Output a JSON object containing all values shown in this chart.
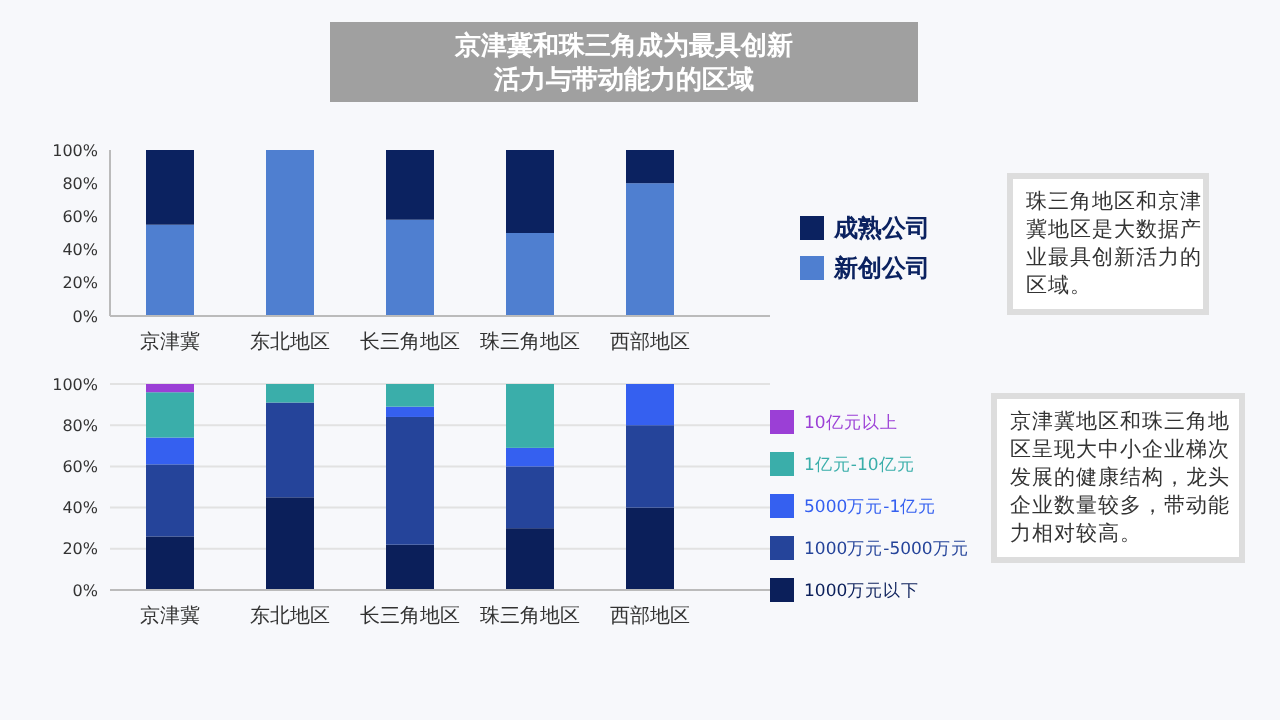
{
  "chart_data": [
    {
      "type": "bar",
      "title": "京津冀和珠三角成为最具创新活力与带动能力的区域",
      "stacked": true,
      "legend": "right",
      "grid": false,
      "categories": [
        "京津冀",
        "东北地区",
        "长三角地区",
        "珠三角地区",
        "西部地区"
      ],
      "ylim": [
        0,
        100
      ],
      "yticks": [
        {
          "value": 0,
          "label": "0%"
        },
        {
          "value": 20,
          "label": "20%"
        },
        {
          "value": 40,
          "label": "40%"
        },
        {
          "value": 60,
          "label": "60%"
        },
        {
          "value": 80,
          "label": "80%"
        },
        {
          "value": 100,
          "label": "100%"
        }
      ],
      "series": [
        {
          "name": "新创公司",
          "color": "#4f7fd0",
          "values": [
            55,
            100,
            58,
            50,
            80
          ]
        },
        {
          "name": "成熟公司",
          "color": "#0b2260",
          "values": [
            45,
            0,
            42,
            50,
            20
          ]
        }
      ],
      "annotations": [
        "珠三角地区和京津冀地区是大数据产业最具创新活力的区域。"
      ]
    },
    {
      "type": "bar",
      "stacked": true,
      "legend": "right",
      "grid": "y",
      "categories": [
        "京津冀",
        "东北地区",
        "长三角地区",
        "珠三角地区",
        "西部地区"
      ],
      "ylim": [
        0,
        100
      ],
      "yticks": [
        {
          "value": 0,
          "label": "0%"
        },
        {
          "value": 20,
          "label": "20%"
        },
        {
          "value": 40,
          "label": "40%"
        },
        {
          "value": 60,
          "label": "60%"
        },
        {
          "value": 80,
          "label": "80%"
        },
        {
          "value": 100,
          "label": "100%"
        }
      ],
      "series": [
        {
          "name": "1000万元以下",
          "color": "#0b1f5a",
          "values": [
            26,
            45,
            22,
            30,
            40
          ]
        },
        {
          "name": "1000万元-5000万元",
          "color": "#25449a",
          "values": [
            35,
            46,
            62,
            30,
            40
          ]
        },
        {
          "name": "5000万元-1亿元",
          "color": "#3560f0",
          "values": [
            13,
            0,
            5,
            9,
            20
          ]
        },
        {
          "name": "1亿元-10亿元",
          "color": "#3aaeaa",
          "values": [
            22,
            9,
            11,
            31,
            0
          ]
        },
        {
          "name": "10亿元以上",
          "color": "#9b3fd6",
          "values": [
            4,
            0,
            0,
            0,
            0
          ]
        }
      ],
      "annotations": [
        "京津冀地区和珠三角地区呈现大中小企业梯次发展的健康结构，龙头企业数量较多，带动能力相对较高。"
      ]
    }
  ]
}
